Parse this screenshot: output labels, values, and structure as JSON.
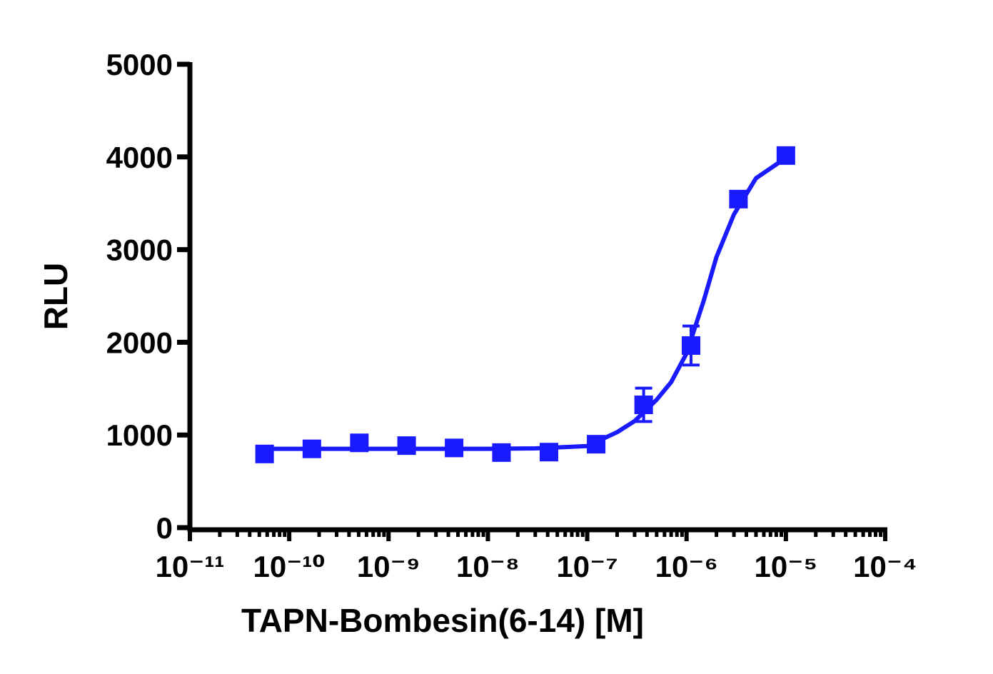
{
  "chart_data": {
    "type": "scatter",
    "x_label": "TAPN-Bombesin(6-14) [M]",
    "y_label": "RLU",
    "log_x": true,
    "color": "#1a1aff",
    "xlim": [
      1e-11,
      0.0001
    ],
    "xticks": [
      {
        "value": 1e-11,
        "label": "10⁻¹¹"
      },
      {
        "value": 1e-10,
        "label": "10⁻¹⁰"
      },
      {
        "value": 1e-09,
        "label": "10⁻⁹"
      },
      {
        "value": 1e-08,
        "label": "10⁻⁸"
      },
      {
        "value": 1e-07,
        "label": "10⁻⁷"
      },
      {
        "value": 1e-06,
        "label": "10⁻⁶"
      },
      {
        "value": 1e-05,
        "label": "10⁻⁵"
      },
      {
        "value": 0.0001,
        "label": "10⁻⁴"
      }
    ],
    "ylim": [
      0,
      5000
    ],
    "yticks": [
      0,
      1000,
      2000,
      3000,
      4000,
      5000
    ],
    "x": [
      5.65e-11,
      1.69e-10,
      5.08e-10,
      1.52e-09,
      4.57e-09,
      1.37e-08,
      4.12e-08,
      1.23e-07,
      3.7e-07,
      1.11e-06,
      3.33e-06,
      1e-05
    ],
    "values": [
      795,
      850,
      915,
      885,
      860,
      810,
      815,
      900,
      1325,
      1965,
      3545,
      4015
    ],
    "errors": [
      30,
      30,
      40,
      30,
      30,
      40,
      40,
      40,
      180,
      210,
      70,
      50
    ],
    "fit": {
      "x": [
        5e-11,
        1e-10,
        1e-09,
        1e-08,
        3e-08,
        1e-07,
        2e-07,
        3e-07,
        5e-07,
        7e-07,
        1e-06,
        1.5e-06,
        2e-06,
        3e-06,
        5e-06,
        1e-05
      ],
      "values": [
        850,
        850,
        850,
        850,
        855,
        880,
        1030,
        1150,
        1380,
        1570,
        1880,
        2460,
        2920,
        3380,
        3770,
        3990
      ]
    }
  }
}
